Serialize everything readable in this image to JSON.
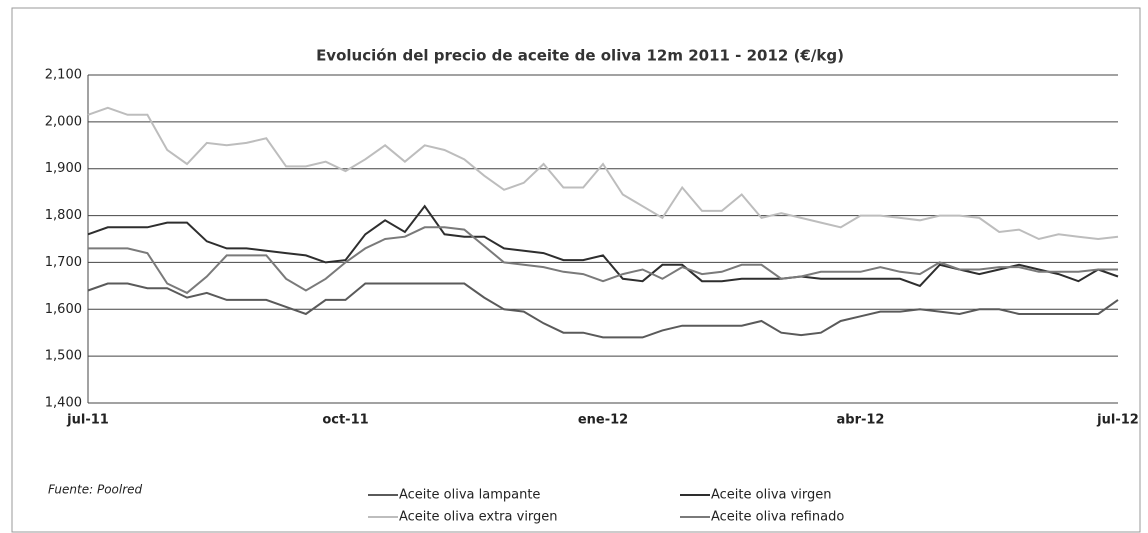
{
  "chart_data": {
    "type": "line",
    "title": "Evolución del precio de aceite de oliva 12m 2011 - 2012 (€/kg)",
    "source": "Fuente: Poolred",
    "categories": [
      "jul-11",
      null,
      null,
      null,
      null,
      null,
      null,
      null,
      null,
      null,
      null,
      null,
      null,
      "oct-11",
      null,
      null,
      null,
      null,
      null,
      null,
      null,
      null,
      null,
      null,
      null,
      null,
      "ene-12",
      null,
      null,
      null,
      null,
      null,
      null,
      null,
      null,
      null,
      null,
      null,
      null,
      "abr-12",
      null,
      null,
      null,
      null,
      null,
      null,
      null,
      null,
      null,
      null,
      null,
      null,
      "jul-12"
    ],
    "ylim": [
      1.4,
      2.1
    ],
    "yticks": [
      {
        "value": 1.4,
        "label": "1,400"
      },
      {
        "value": 1.5,
        "label": "1,500"
      },
      {
        "value": 1.6,
        "label": "1,600"
      },
      {
        "value": 1.7,
        "label": "1,700"
      },
      {
        "value": 1.8,
        "label": "1,800"
      },
      {
        "value": 1.9,
        "label": "1,900"
      },
      {
        "value": 2.0,
        "label": "2,000"
      },
      {
        "value": 2.1,
        "label": "2,100"
      }
    ],
    "grid": true,
    "series": [
      {
        "name": "Aceite oliva lampante",
        "color": "#5a5a5a",
        "values": [
          1.64,
          1.655,
          1.655,
          1.645,
          1.645,
          1.625,
          1.635,
          1.62,
          1.62,
          1.62,
          1.605,
          1.59,
          1.62,
          1.62,
          1.655,
          1.655,
          1.655,
          1.655,
          1.655,
          1.655,
          1.625,
          1.6,
          1.595,
          1.57,
          1.55,
          1.55,
          1.54,
          1.54,
          1.54,
          1.555,
          1.565,
          1.565,
          1.565,
          1.565,
          1.575,
          1.55,
          1.545,
          1.55,
          1.575,
          1.585,
          1.595,
          1.595,
          1.6,
          1.595,
          1.59,
          1.6,
          1.6,
          1.59,
          1.59,
          1.59,
          1.59,
          1.59,
          1.62
        ]
      },
      {
        "name": "Aceite oliva virgen",
        "color": "#2e2e2e",
        "values": [
          1.76,
          1.775,
          1.775,
          1.775,
          1.785,
          1.785,
          1.745,
          1.73,
          1.73,
          1.725,
          1.72,
          1.715,
          1.7,
          1.705,
          1.76,
          1.79,
          1.765,
          1.82,
          1.76,
          1.755,
          1.755,
          1.73,
          1.725,
          1.72,
          1.705,
          1.705,
          1.715,
          1.665,
          1.66,
          1.695,
          1.695,
          1.66,
          1.66,
          1.665,
          1.665,
          1.665,
          1.67,
          1.665,
          1.665,
          1.665,
          1.665,
          1.665,
          1.65,
          1.695,
          1.685,
          1.675,
          1.685,
          1.695,
          1.685,
          1.675,
          1.66,
          1.685,
          1.67
        ]
      },
      {
        "name": "Aceite oliva extra virgen",
        "color": "#bdbdbd",
        "values": [
          2.015,
          2.03,
          2.015,
          2.015,
          1.94,
          1.91,
          1.955,
          1.95,
          1.955,
          1.965,
          1.905,
          1.905,
          1.915,
          1.895,
          1.92,
          1.95,
          1.915,
          1.95,
          1.94,
          1.92,
          1.885,
          1.855,
          1.87,
          1.91,
          1.86,
          1.86,
          1.91,
          1.845,
          1.82,
          1.795,
          1.86,
          1.81,
          1.81,
          1.845,
          1.795,
          1.805,
          1.795,
          1.785,
          1.775,
          1.8,
          1.8,
          1.795,
          1.79,
          1.8,
          1.8,
          1.795,
          1.765,
          1.77,
          1.75,
          1.76,
          1.755,
          1.75,
          1.755
        ]
      },
      {
        "name": "Aceite oliva refinado",
        "color": "#7a7a7a",
        "values": [
          1.73,
          1.73,
          1.73,
          1.72,
          1.655,
          1.635,
          1.67,
          1.715,
          1.715,
          1.715,
          1.665,
          1.64,
          1.665,
          1.7,
          1.73,
          1.75,
          1.755,
          1.775,
          1.775,
          1.77,
          1.735,
          1.7,
          1.695,
          1.69,
          1.68,
          1.675,
          1.66,
          1.675,
          1.685,
          1.665,
          1.69,
          1.675,
          1.68,
          1.695,
          1.695,
          1.665,
          1.67,
          1.68,
          1.68,
          1.68,
          1.69,
          1.68,
          1.675,
          1.7,
          1.685,
          1.685,
          1.69,
          1.69,
          1.68,
          1.68,
          1.68,
          1.685,
          1.685
        ]
      }
    ]
  }
}
